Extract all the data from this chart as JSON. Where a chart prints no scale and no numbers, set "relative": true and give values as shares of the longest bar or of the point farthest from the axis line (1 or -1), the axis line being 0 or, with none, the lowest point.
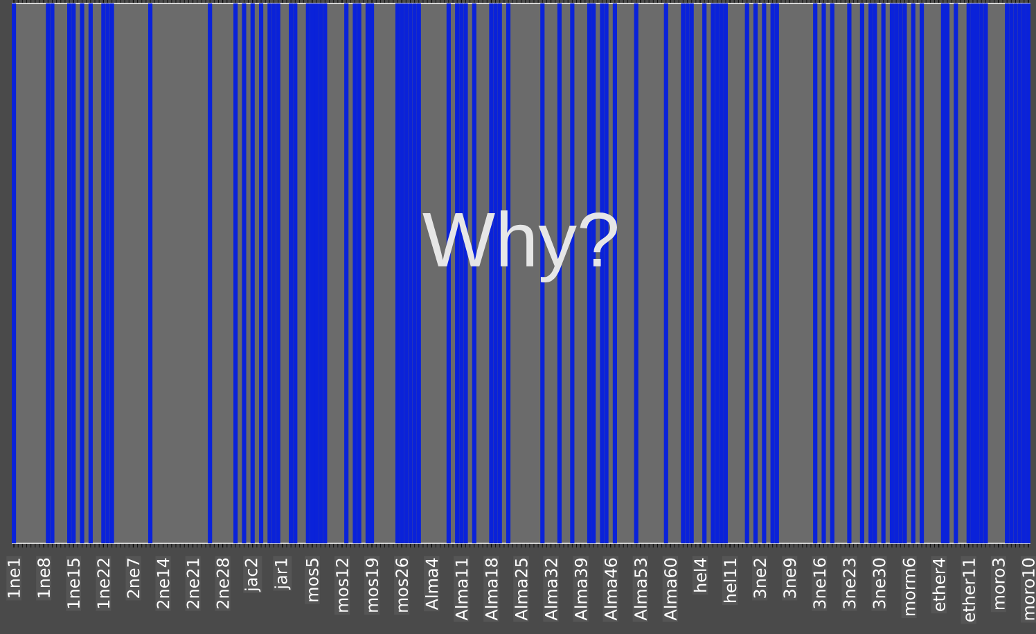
{
  "chart_data": {
    "type": "bar",
    "title": "Why?",
    "relative": true,
    "color": "#0a22d9",
    "categories": [
      "1ne1",
      null,
      null,
      null,
      null,
      null,
      null,
      "1ne8",
      null,
      null,
      null,
      null,
      null,
      null,
      "1ne15",
      null,
      null,
      null,
      null,
      null,
      null,
      "1ne22",
      null,
      null,
      null,
      null,
      null,
      null,
      "2ne7",
      null,
      null,
      null,
      null,
      null,
      null,
      "2ne14",
      null,
      null,
      null,
      null,
      null,
      null,
      "2ne21",
      null,
      null,
      null,
      null,
      null,
      null,
      "2ne28",
      null,
      null,
      null,
      null,
      null,
      null,
      "jac2",
      null,
      null,
      null,
      null,
      null,
      null,
      "jar1",
      null,
      null,
      null,
      null,
      null,
      null,
      "mos5",
      null,
      null,
      null,
      null,
      null,
      null,
      "mos12",
      null,
      null,
      null,
      null,
      null,
      null,
      "mos19",
      null,
      null,
      null,
      null,
      null,
      null,
      "mos26",
      null,
      null,
      null,
      null,
      null,
      null,
      "Alma4",
      null,
      null,
      null,
      null,
      null,
      null,
      "Alma11",
      null,
      null,
      null,
      null,
      null,
      null,
      "Alma18",
      null,
      null,
      null,
      null,
      null,
      null,
      "Alma25",
      null,
      null,
      null,
      null,
      null,
      null,
      "Alma32",
      null,
      null,
      null,
      null,
      null,
      null,
      "Alma39",
      null,
      null,
      null,
      null,
      null,
      null,
      "Alma46",
      null,
      null,
      null,
      null,
      null,
      null,
      "Alma53",
      null,
      null,
      null,
      null,
      null,
      null,
      "Alma60",
      null,
      null,
      null,
      null,
      null,
      null,
      "hel4",
      null,
      null,
      null,
      null,
      null,
      null,
      "hel11",
      null,
      null,
      null,
      null,
      null,
      null,
      "3ne2",
      null,
      null,
      null,
      null,
      null,
      null,
      "3ne9",
      null,
      null,
      null,
      null,
      null,
      null,
      "3ne16",
      null,
      null,
      null,
      null,
      null,
      null,
      "3ne23",
      null,
      null,
      null,
      null,
      null,
      null,
      "3ne30",
      null,
      null,
      null,
      null,
      null,
      null,
      "morm6",
      null,
      null,
      null,
      null,
      null,
      null,
      "ether4",
      null,
      null,
      null,
      null,
      null,
      null,
      "ether11",
      null,
      null,
      null,
      null,
      null,
      null,
      "moro3",
      null,
      null,
      null,
      null,
      null,
      null,
      "moro10"
    ],
    "values": [
      1,
      0,
      0,
      0,
      0,
      0,
      0,
      0,
      1,
      1,
      0,
      0,
      0,
      1,
      1,
      0,
      1,
      0,
      1,
      0,
      0,
      1,
      1,
      1,
      0,
      0,
      0,
      0,
      0,
      0,
      0,
      0,
      1,
      0,
      0,
      0,
      0,
      0,
      0,
      0,
      0,
      0,
      0,
      0,
      0,
      0,
      1,
      0,
      0,
      0,
      0,
      0,
      1,
      0,
      1,
      0,
      1,
      0,
      1,
      0,
      1,
      1,
      1,
      0,
      0,
      1,
      1,
      0,
      0,
      1,
      1,
      1,
      1,
      1,
      0,
      0,
      0,
      0,
      1,
      0,
      1,
      1,
      0,
      1,
      1,
      0,
      0,
      0,
      0,
      0,
      1,
      1,
      1,
      1,
      1,
      1,
      0,
      0,
      0,
      0,
      0,
      0,
      1,
      0,
      1,
      1,
      1,
      0,
      1,
      0,
      0,
      0,
      1,
      1,
      1,
      0,
      1,
      0,
      0,
      0,
      0,
      0,
      0,
      0,
      1,
      0,
      0,
      0,
      1,
      0,
      0,
      1,
      0,
      0,
      0,
      1,
      1,
      0,
      1,
      1,
      0,
      1,
      0,
      0,
      0,
      0,
      1,
      0,
      0,
      0,
      0,
      0,
      0,
      1,
      0,
      0,
      0,
      1,
      1,
      1,
      0,
      0,
      1,
      0,
      1,
      1,
      1,
      1,
      0,
      0,
      0,
      0,
      1,
      0,
      1,
      0,
      1,
      0,
      1,
      1,
      0,
      0,
      0,
      0,
      0,
      0,
      0,
      0,
      1,
      0,
      1,
      0,
      1,
      0,
      0,
      0,
      1,
      0,
      0,
      1,
      0,
      1,
      1,
      0,
      1,
      0,
      1,
      1,
      1,
      1,
      0,
      1,
      0,
      1,
      0,
      0,
      0,
      0,
      1,
      1,
      0,
      1,
      0,
      0,
      1,
      1,
      1,
      1,
      1,
      0,
      0,
      0,
      0,
      1,
      1,
      1,
      1,
      1,
      1
    ]
  }
}
